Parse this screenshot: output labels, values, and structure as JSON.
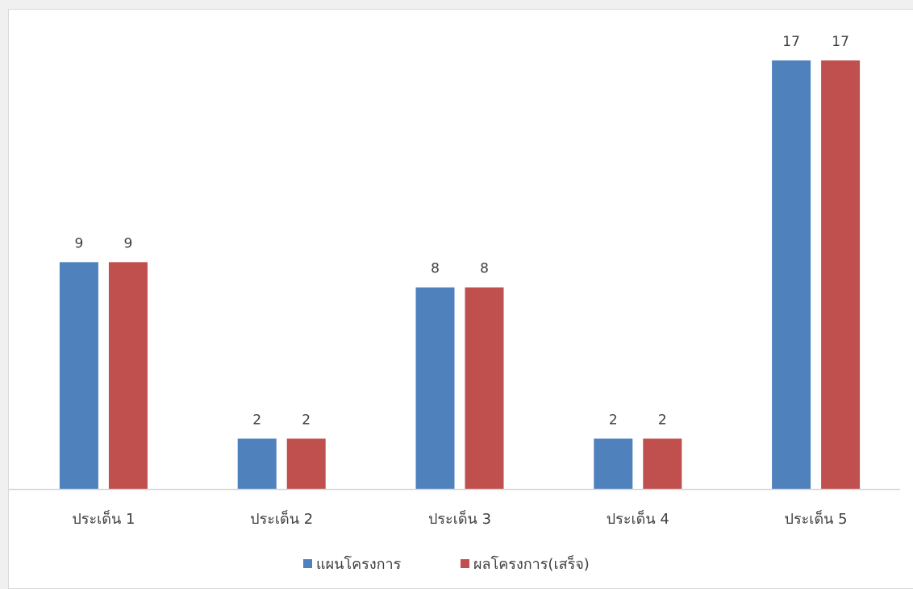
{
  "chart_data": {
    "type": "bar",
    "title": "",
    "xlabel": "",
    "ylabel": "",
    "categories": [
      "ประเด็น 1",
      "ประเด็น 2",
      "ประเด็น 3",
      "ประเด็น 4",
      "ประเด็น 5"
    ],
    "series": [
      {
        "name": "แผนโครงการ",
        "values": [
          9,
          2,
          8,
          2,
          17
        ],
        "color": "#4f81bd"
      },
      {
        "name": "ผลโครงการ(เสร็จ)",
        "values": [
          9,
          2,
          8,
          2,
          17
        ],
        "color": "#c0504d"
      }
    ],
    "ylim": [
      0,
      17
    ],
    "grid": false,
    "data_labels": true,
    "legend_position": "bottom",
    "axis_color": "#d9d9d9",
    "text_color": "#404040"
  }
}
